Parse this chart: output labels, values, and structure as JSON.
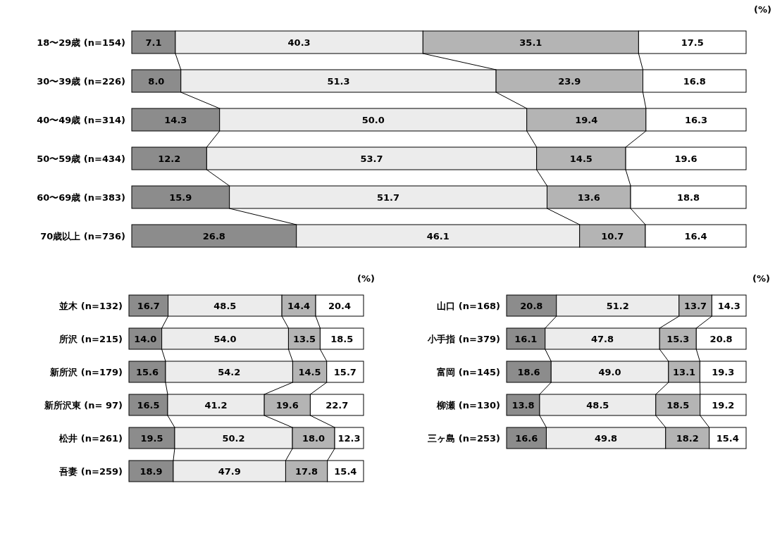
{
  "chart_data": [
    {
      "type": "bar",
      "orientation": "horizontal",
      "stacked": true,
      "xlim": [
        0,
        100
      ],
      "tick_labels": "y",
      "annotations": [
        "(%)"
      ],
      "categories": [
        "18〜29歳 (n=154)",
        "30〜39歳 (n=226)",
        "40〜49歳 (n=314)",
        "50〜59歳 (n=434)",
        "60〜69歳 (n=383)",
        "70歳以上 (n=736)"
      ],
      "series": [
        {
          "color": "#8c8c8c",
          "values": [
            7.1,
            8.0,
            14.3,
            12.2,
            15.9,
            26.8
          ],
          "value_labels": [
            "7.1",
            "8.0",
            "14.3",
            "12.2",
            "15.9",
            "26.8"
          ]
        },
        {
          "color": "#ececec",
          "values": [
            40.3,
            51.3,
            50.0,
            53.7,
            51.7,
            46.1
          ],
          "value_labels": [
            "40.3",
            "51.3",
            "50.0",
            "53.7",
            "51.7",
            "46.1"
          ]
        },
        {
          "color": "#b4b4b4",
          "values": [
            35.1,
            23.9,
            19.4,
            14.5,
            13.6,
            10.7
          ],
          "value_labels": [
            "35.1",
            "23.9",
            "19.4",
            "14.5",
            "13.6",
            "10.7"
          ]
        },
        {
          "color": "#ffffff",
          "values": [
            17.5,
            16.8,
            16.3,
            19.6,
            18.8,
            16.4
          ],
          "value_labels": [
            "17.5",
            "16.8",
            "16.3",
            "19.6",
            "18.8",
            "16.4"
          ]
        }
      ]
    },
    {
      "type": "bar",
      "orientation": "horizontal",
      "stacked": true,
      "xlim": [
        0,
        100
      ],
      "tick_labels": "y",
      "annotations": [
        "(%)"
      ],
      "categories": [
        "並木 (n=132)",
        "所沢 (n=215)",
        "新所沢 (n=179)",
        "新所沢東 (n= 97)",
        "松井 (n=261)",
        "吾妻 (n=259)"
      ],
      "series": [
        {
          "color": "#8c8c8c",
          "values": [
            16.7,
            14.0,
            15.6,
            16.5,
            19.5,
            18.9
          ],
          "value_labels": [
            "16.7",
            "14.0",
            "15.6",
            "16.5",
            "19.5",
            "18.9"
          ]
        },
        {
          "color": "#ececec",
          "values": [
            48.5,
            54.0,
            54.2,
            41.2,
            50.2,
            47.9
          ],
          "value_labels": [
            "48.5",
            "54.0",
            "54.2",
            "41.2",
            "50.2",
            "47.9"
          ]
        },
        {
          "color": "#b4b4b4",
          "values": [
            14.4,
            13.5,
            14.5,
            19.6,
            18.0,
            17.8
          ],
          "value_labels": [
            "14.4",
            "13.5",
            "14.5",
            "19.6",
            "18.0",
            "17.8"
          ]
        },
        {
          "color": "#ffffff",
          "values": [
            20.4,
            18.5,
            15.7,
            22.7,
            12.3,
            15.4
          ],
          "value_labels": [
            "20.4",
            "18.5",
            "15.7",
            "22.7",
            "12.3",
            "15.4"
          ]
        }
      ]
    },
    {
      "type": "bar",
      "orientation": "horizontal",
      "stacked": true,
      "xlim": [
        0,
        100
      ],
      "tick_labels": "y",
      "annotations": [
        "(%)"
      ],
      "categories": [
        "山口 (n=168)",
        "小手指 (n=379)",
        "富岡 (n=145)",
        "柳瀬 (n=130)",
        "三ヶ島 (n=253)"
      ],
      "series": [
        {
          "color": "#8c8c8c",
          "values": [
            20.8,
            16.1,
            18.6,
            13.8,
            16.6
          ],
          "value_labels": [
            "20.8",
            "16.1",
            "18.6",
            "13.8",
            "16.6"
          ]
        },
        {
          "color": "#ececec",
          "values": [
            51.2,
            47.8,
            49.0,
            48.5,
            49.8
          ],
          "value_labels": [
            "51.2",
            "47.8",
            "49.0",
            "48.5",
            "49.8"
          ]
        },
        {
          "color": "#b4b4b4",
          "values": [
            13.7,
            15.3,
            13.1,
            18.5,
            18.2
          ],
          "value_labels": [
            "13.7",
            "15.3",
            "13.1",
            "18.5",
            "18.2"
          ]
        },
        {
          "color": "#ffffff",
          "values": [
            14.3,
            20.8,
            19.3,
            19.2,
            15.4
          ],
          "value_labels": [
            "14.3",
            "20.8",
            "19.3",
            "19.2",
            "15.4"
          ]
        }
      ]
    }
  ]
}
